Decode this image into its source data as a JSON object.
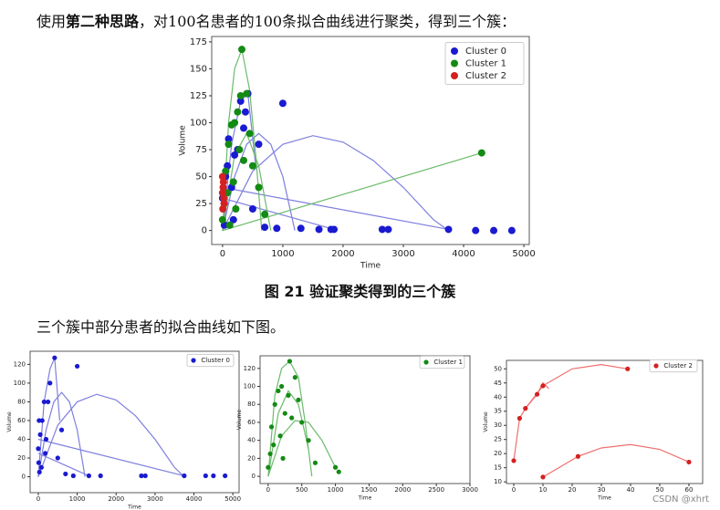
{
  "intro": {
    "before": "使用",
    "bold": "第二种思路",
    "after": "，对100名患者的100条拟合曲线进行聚类，得到三个簇："
  },
  "caption": "图 21  验证聚类得到的三个簇",
  "paragraph": "三个簇中部分患者的拟合曲线如下图。",
  "watermark": "CSDN @xhrt",
  "chart_data": [
    {
      "type": "scatter",
      "xlabel": "Time",
      "ylabel": "Volume",
      "xlim": [
        -180,
        5090
      ],
      "ylim": [
        -13,
        180
      ],
      "xticks": [
        0,
        1000,
        2000,
        3000,
        4000,
        5000
      ],
      "yticks": [
        0,
        25,
        50,
        75,
        100,
        125,
        150,
        175
      ],
      "legend": "upper right",
      "series": [
        {
          "name": "Cluster 0",
          "color": "#1a1ad0",
          "x": [
            420,
            1000,
            300,
            250,
            380,
            600,
            100,
            50,
            200,
            900,
            1300,
            1600,
            1800,
            1850,
            2650,
            2750,
            3750,
            4200,
            4500,
            4800,
            0,
            30,
            150,
            500,
            700,
            350,
            80,
            180
          ],
          "y": [
            127,
            118,
            120,
            75,
            110,
            80,
            85,
            50,
            70,
            2,
            2,
            1,
            1,
            1,
            1,
            1,
            1,
            0,
            0,
            0,
            30,
            5,
            40,
            20,
            3,
            95,
            60,
            10
          ]
        },
        {
          "name": "Cluster 1",
          "color": "#138a13",
          "x": [
            320,
            4300,
            400,
            200,
            150,
            300,
            100,
            250,
            450,
            500,
            50,
            600,
            350,
            220,
            80,
            180,
            280,
            700,
            0,
            30,
            120
          ],
          "y": [
            168,
            72,
            127,
            100,
            98,
            125,
            80,
            110,
            90,
            60,
            55,
            40,
            65,
            20,
            35,
            45,
            75,
            15,
            10,
            25,
            5
          ]
        },
        {
          "name": "Cluster 2",
          "color": "#d42020",
          "x": [
            0,
            10,
            20,
            5,
            15,
            0,
            25
          ],
          "y": [
            50,
            40,
            30,
            20,
            45,
            35,
            25
          ]
        }
      ],
      "curves": [
        {
          "color": "#7f7fe0",
          "x": [
            0,
            500,
            1000,
            1500,
            2000,
            2500,
            3000,
            3500,
            3750
          ],
          "y": [
            0,
            55,
            80,
            88,
            82,
            65,
            40,
            10,
            0
          ]
        },
        {
          "color": "#7f7fe0",
          "x": [
            0,
            200,
            400,
            600,
            800,
            1000,
            1200
          ],
          "y": [
            0,
            50,
            80,
            90,
            80,
            50,
            0
          ]
        },
        {
          "color": "#7f7fe0",
          "x": [
            0,
            1850
          ],
          "y": [
            30,
            1
          ]
        },
        {
          "color": "#7f7fe0",
          "x": [
            0,
            3750
          ],
          "y": [
            40,
            1
          ]
        },
        {
          "color": "#7f7fe0",
          "x": [
            0,
            150,
            300,
            420,
            550
          ],
          "y": [
            0,
            80,
            120,
            127,
            60
          ]
        },
        {
          "color": "#6bbb6b",
          "x": [
            0,
            4300
          ],
          "y": [
            0,
            72
          ]
        },
        {
          "color": "#6bbb6b",
          "x": [
            0,
            100,
            200,
            320,
            450,
            550,
            650
          ],
          "y": [
            0,
            100,
            150,
            168,
            130,
            70,
            0
          ]
        },
        {
          "color": "#6bbb6b",
          "x": [
            0,
            200,
            400,
            600,
            800
          ],
          "y": [
            0,
            70,
            90,
            60,
            0
          ]
        }
      ]
    },
    {
      "type": "scatter",
      "xlabel": "Time",
      "ylabel": "Volume",
      "xlim": [
        -210,
        5160
      ],
      "ylim": [
        -17,
        134
      ],
      "xticks": [
        0,
        1000,
        2000,
        3000,
        4000,
        5000
      ],
      "yticks": [
        0,
        20,
        40,
        60,
        80,
        100,
        120
      ],
      "legend": "upper right",
      "series": [
        {
          "name": "Cluster 0",
          "color": "#1a1ad0",
          "x": [
            420,
            1000,
            300,
            250,
            150,
            600,
            100,
            50,
            200,
            900,
            1300,
            1600,
            2650,
            2750,
            3750,
            4300,
            4500,
            4800,
            0,
            30,
            500,
            700,
            80,
            180,
            20,
            10
          ],
          "y": [
            127,
            118,
            100,
            80,
            80,
            50,
            60,
            45,
            40,
            1,
            1,
            1,
            1,
            1,
            1,
            1,
            1,
            1,
            30,
            5,
            20,
            3,
            10,
            25,
            60,
            15
          ]
        }
      ],
      "curves": [
        {
          "color": "#7f7fe0",
          "x": [
            0,
            500,
            1000,
            1500,
            2000,
            2500,
            3000,
            3500,
            3750
          ],
          "y": [
            0,
            55,
            80,
            88,
            82,
            65,
            40,
            10,
            0
          ]
        },
        {
          "color": "#7f7fe0",
          "x": [
            0,
            200,
            400,
            600,
            800,
            1000,
            1200
          ],
          "y": [
            0,
            50,
            80,
            90,
            80,
            50,
            0
          ]
        },
        {
          "color": "#7f7fe0",
          "x": [
            0,
            3750
          ],
          "y": [
            40,
            1
          ]
        },
        {
          "color": "#7f7fe0",
          "x": [
            0,
            150,
            300,
            420,
            550
          ],
          "y": [
            0,
            80,
            115,
            127,
            60
          ]
        },
        {
          "color": "#7f7fe0",
          "x": [
            0,
            1300
          ],
          "y": [
            25,
            1
          ]
        }
      ]
    },
    {
      "type": "scatter",
      "xlabel": "Time",
      "ylabel": "Volume",
      "xlim": [
        -120,
        3000
      ],
      "ylim": [
        -8,
        134
      ],
      "xticks": [
        0,
        500,
        1000,
        1500,
        2000,
        2500,
        3000
      ],
      "yticks": [
        0,
        20,
        40,
        60,
        80,
        100,
        120
      ],
      "legend": "upper right",
      "series": [
        {
          "name": "Cluster 1",
          "color": "#138a13",
          "x": [
            320,
            400,
            200,
            150,
            300,
            100,
            250,
            450,
            500,
            50,
            600,
            350,
            220,
            80,
            180,
            1000,
            1050,
            700,
            0,
            30
          ],
          "y": [
            128,
            110,
            100,
            95,
            90,
            80,
            70,
            85,
            60,
            55,
            40,
            65,
            20,
            35,
            45,
            10,
            5,
            15,
            10,
            25
          ]
        }
      ],
      "curves": [
        {
          "color": "#6bbb6b",
          "x": [
            0,
            100,
            200,
            320,
            450,
            550,
            650
          ],
          "y": [
            0,
            90,
            120,
            128,
            110,
            60,
            0
          ]
        },
        {
          "color": "#6bbb6b",
          "x": [
            0,
            200,
            400,
            600,
            800,
            1000
          ],
          "y": [
            0,
            45,
            62,
            60,
            40,
            10
          ]
        },
        {
          "color": "#6bbb6b",
          "x": [
            0,
            150,
            300,
            450,
            600
          ],
          "y": [
            0,
            70,
            95,
            80,
            30
          ]
        }
      ]
    },
    {
      "type": "scatter",
      "xlabel": "Time",
      "ylabel": "Volume",
      "xlim": [
        -2.5,
        64.7
      ],
      "ylim": [
        9.4,
        53
      ],
      "xticks": [
        0,
        10,
        20,
        30,
        40,
        50,
        60
      ],
      "yticks": [
        10,
        15,
        20,
        25,
        30,
        35,
        40,
        45,
        50
      ],
      "legend": "upper right",
      "series": [
        {
          "name": "Cluster 2",
          "color": "#d42020",
          "x": [
            0,
            2,
            4,
            8,
            10,
            39,
            10,
            22,
            60
          ],
          "y": [
            17.5,
            32.5,
            36,
            41,
            44,
            50,
            11.7,
            19,
            17
          ]
        }
      ],
      "curves": [
        {
          "color": "#ee7070",
          "x": [
            0,
            2,
            4,
            8,
            10,
            12
          ],
          "y": [
            17.5,
            32.5,
            36,
            41,
            45,
            43
          ]
        },
        {
          "color": "#ee7070",
          "x": [
            4,
            10,
            20,
            30,
            39
          ],
          "y": [
            36,
            44,
            50,
            51.5,
            50
          ]
        },
        {
          "color": "#ee7070",
          "x": [
            10,
            22,
            30,
            40,
            50,
            60
          ],
          "y": [
            11.7,
            19,
            22,
            23.2,
            21.5,
            17
          ]
        }
      ]
    }
  ]
}
